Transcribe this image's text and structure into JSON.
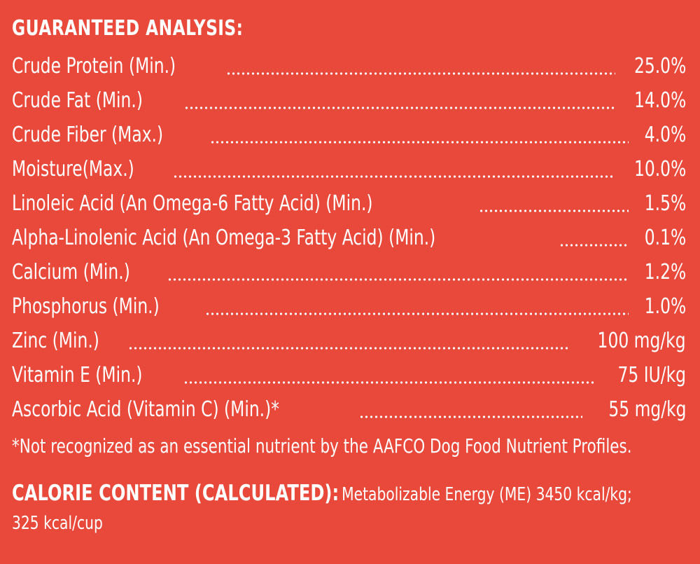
{
  "title": "GUARANTEED ANALYSIS:",
  "rows": [
    {
      "label": "Crude Protein (Min.)",
      "value": "25.0%"
    },
    {
      "label": "Crude Fat (Min.)",
      "value": "14.0%"
    },
    {
      "label": "Crude Fiber (Max.)",
      "value": "4.0%"
    },
    {
      "label": "Moisture(Max.)",
      "value": "10.0%"
    },
    {
      "label": "Linoleic Acid (An Omega-6 Fatty Acid) (Min.)",
      "value": "1.5%"
    },
    {
      "label": "Alpha-Linolenic Acid (An Omega-3 Fatty Acid) (Min.)",
      "value": "0.1%"
    },
    {
      "label": "Calcium (Min.)",
      "value": "1.2%"
    },
    {
      "label": "Phosphorus (Min.)",
      "value": "1.0%"
    },
    {
      "label": "Zinc (Min.)",
      "value": "100 mg/kg"
    },
    {
      "label": "Vitamin E (Min.)",
      "value": "75 IU/kg"
    },
    {
      "label": "Ascorbic Acid (Vitamin C) (Min.)*",
      "value": "55 mg/kg"
    }
  ],
  "footnote": "*Not recognized as an essential nutrient by the AAFCO Dog Food Nutrient Profiles.",
  "calorie": {
    "heading": "CALORIE CONTENT (CALCULATED):",
    "line1": "Metabolizable Energy (ME) 3450 kcal/kg;",
    "line2": "325 kcal/cup"
  },
  "colors": {
    "background": "#e8493a",
    "text": "#ffffff"
  }
}
